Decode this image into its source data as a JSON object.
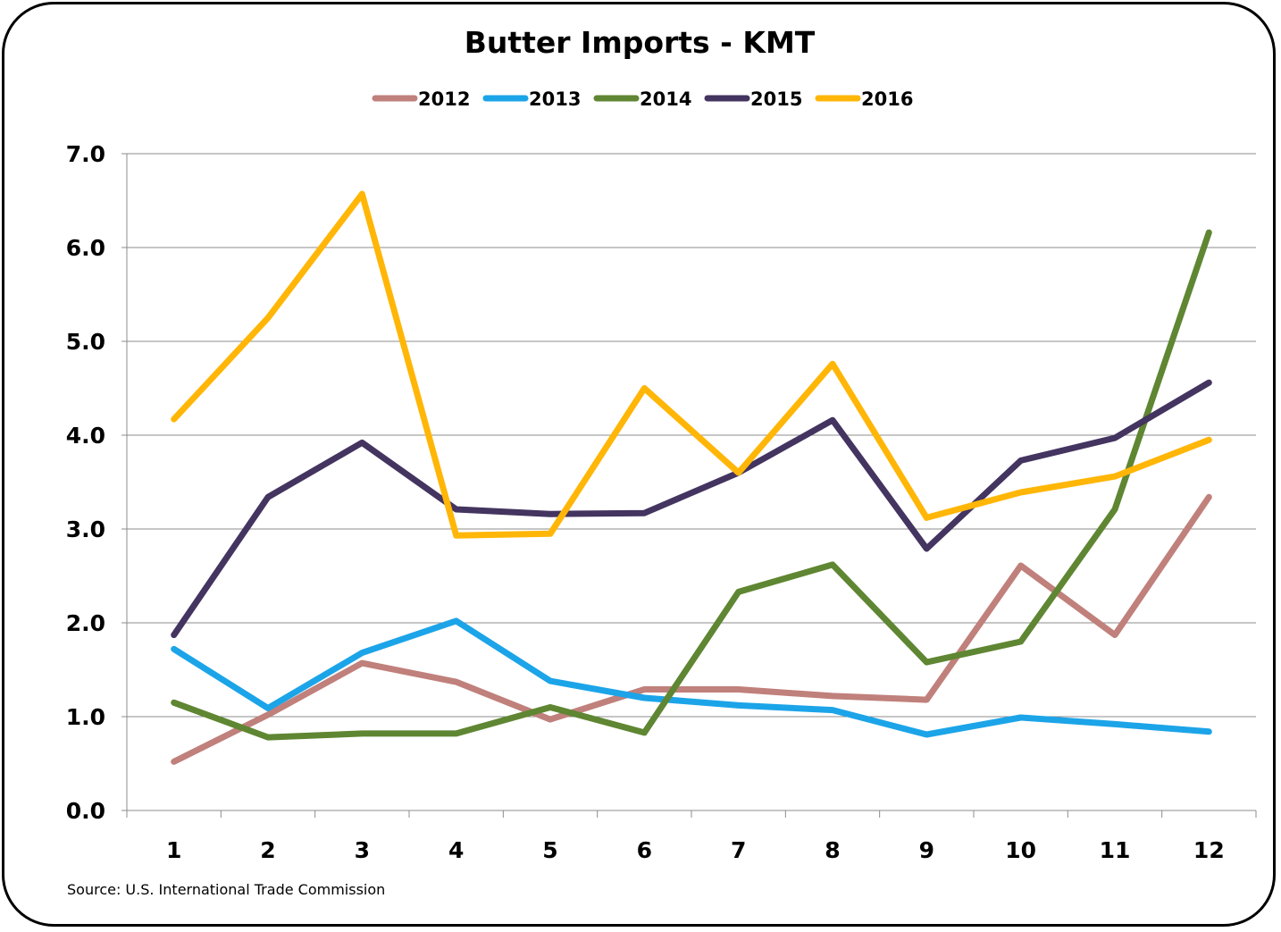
{
  "chart_data": {
    "type": "line",
    "title": "Butter Imports - KMT",
    "xlabel": "",
    "ylabel": "",
    "x": [
      "1",
      "2",
      "3",
      "4",
      "5",
      "6",
      "7",
      "8",
      "9",
      "10",
      "11",
      "12"
    ],
    "ylim": [
      0,
      7
    ],
    "yticks": [
      "0.0",
      "1.0",
      "2.0",
      "3.0",
      "4.0",
      "5.0",
      "6.0",
      "7.0"
    ],
    "grid": "horizontal",
    "legend_position": "top",
    "series": [
      {
        "name": "2012",
        "color": "#c0807b",
        "values": [
          0.52,
          1.02,
          1.57,
          1.37,
          0.97,
          1.29,
          1.29,
          1.22,
          1.18,
          2.61,
          1.87,
          3.34
        ]
      },
      {
        "name": "2013",
        "color": "#1ca4e8",
        "values": [
          1.72,
          1.09,
          1.68,
          2.02,
          1.38,
          1.2,
          1.12,
          1.07,
          0.81,
          0.99,
          0.92,
          0.84
        ]
      },
      {
        "name": "2014",
        "color": "#5f8632",
        "values": [
          1.15,
          0.78,
          0.82,
          0.82,
          1.1,
          0.83,
          2.33,
          2.62,
          1.58,
          1.8,
          3.21,
          6.16
        ]
      },
      {
        "name": "2015",
        "color": "#433460",
        "values": [
          1.87,
          3.34,
          3.92,
          3.21,
          3.16,
          3.17,
          3.6,
          4.16,
          2.79,
          3.73,
          3.97,
          4.56
        ]
      },
      {
        "name": "2016",
        "color": "#ffb606",
        "values": [
          4.17,
          5.25,
          6.57,
          2.93,
          2.95,
          4.5,
          3.6,
          4.76,
          3.12,
          3.39,
          3.56,
          3.95
        ]
      }
    ],
    "source": "Source: U.S. International Trade Commission"
  }
}
